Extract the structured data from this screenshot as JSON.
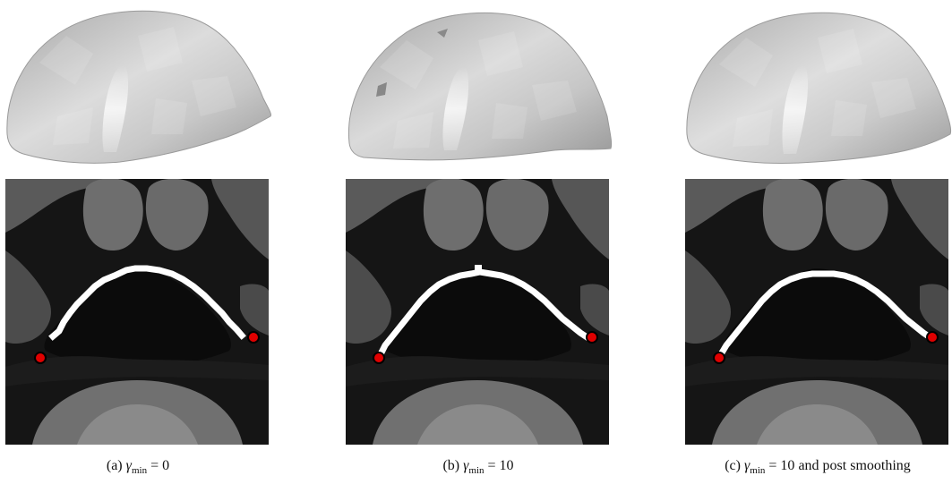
{
  "figure": {
    "panels": [
      {
        "id": "a",
        "label": "(a)",
        "symbol": "γ",
        "subscript": "min",
        "relation": "= 0",
        "suffix": "",
        "surface_icon": "brain-mesh-surface",
        "slice_icon": "mri-slice-with-contour"
      },
      {
        "id": "b",
        "label": "(b)",
        "symbol": "γ",
        "subscript": "min",
        "relation": "= 10",
        "suffix": "",
        "surface_icon": "brain-mesh-surface",
        "slice_icon": "mri-slice-with-contour"
      },
      {
        "id": "c",
        "label": "(c)",
        "symbol": "γ",
        "subscript": "min",
        "relation": "= 10",
        "suffix": " and post smoothing",
        "surface_icon": "brain-mesh-surface",
        "slice_icon": "mri-slice-with-contour"
      }
    ]
  },
  "colors": {
    "mesh_light": "#e6e6e6",
    "mesh_mid": "#c4c4c4",
    "mesh_dark": "#8e8e8e",
    "contour": "#ffffff",
    "marker_fill": "#e00000",
    "marker_stroke": "#000000",
    "slice_background": "#101010"
  }
}
